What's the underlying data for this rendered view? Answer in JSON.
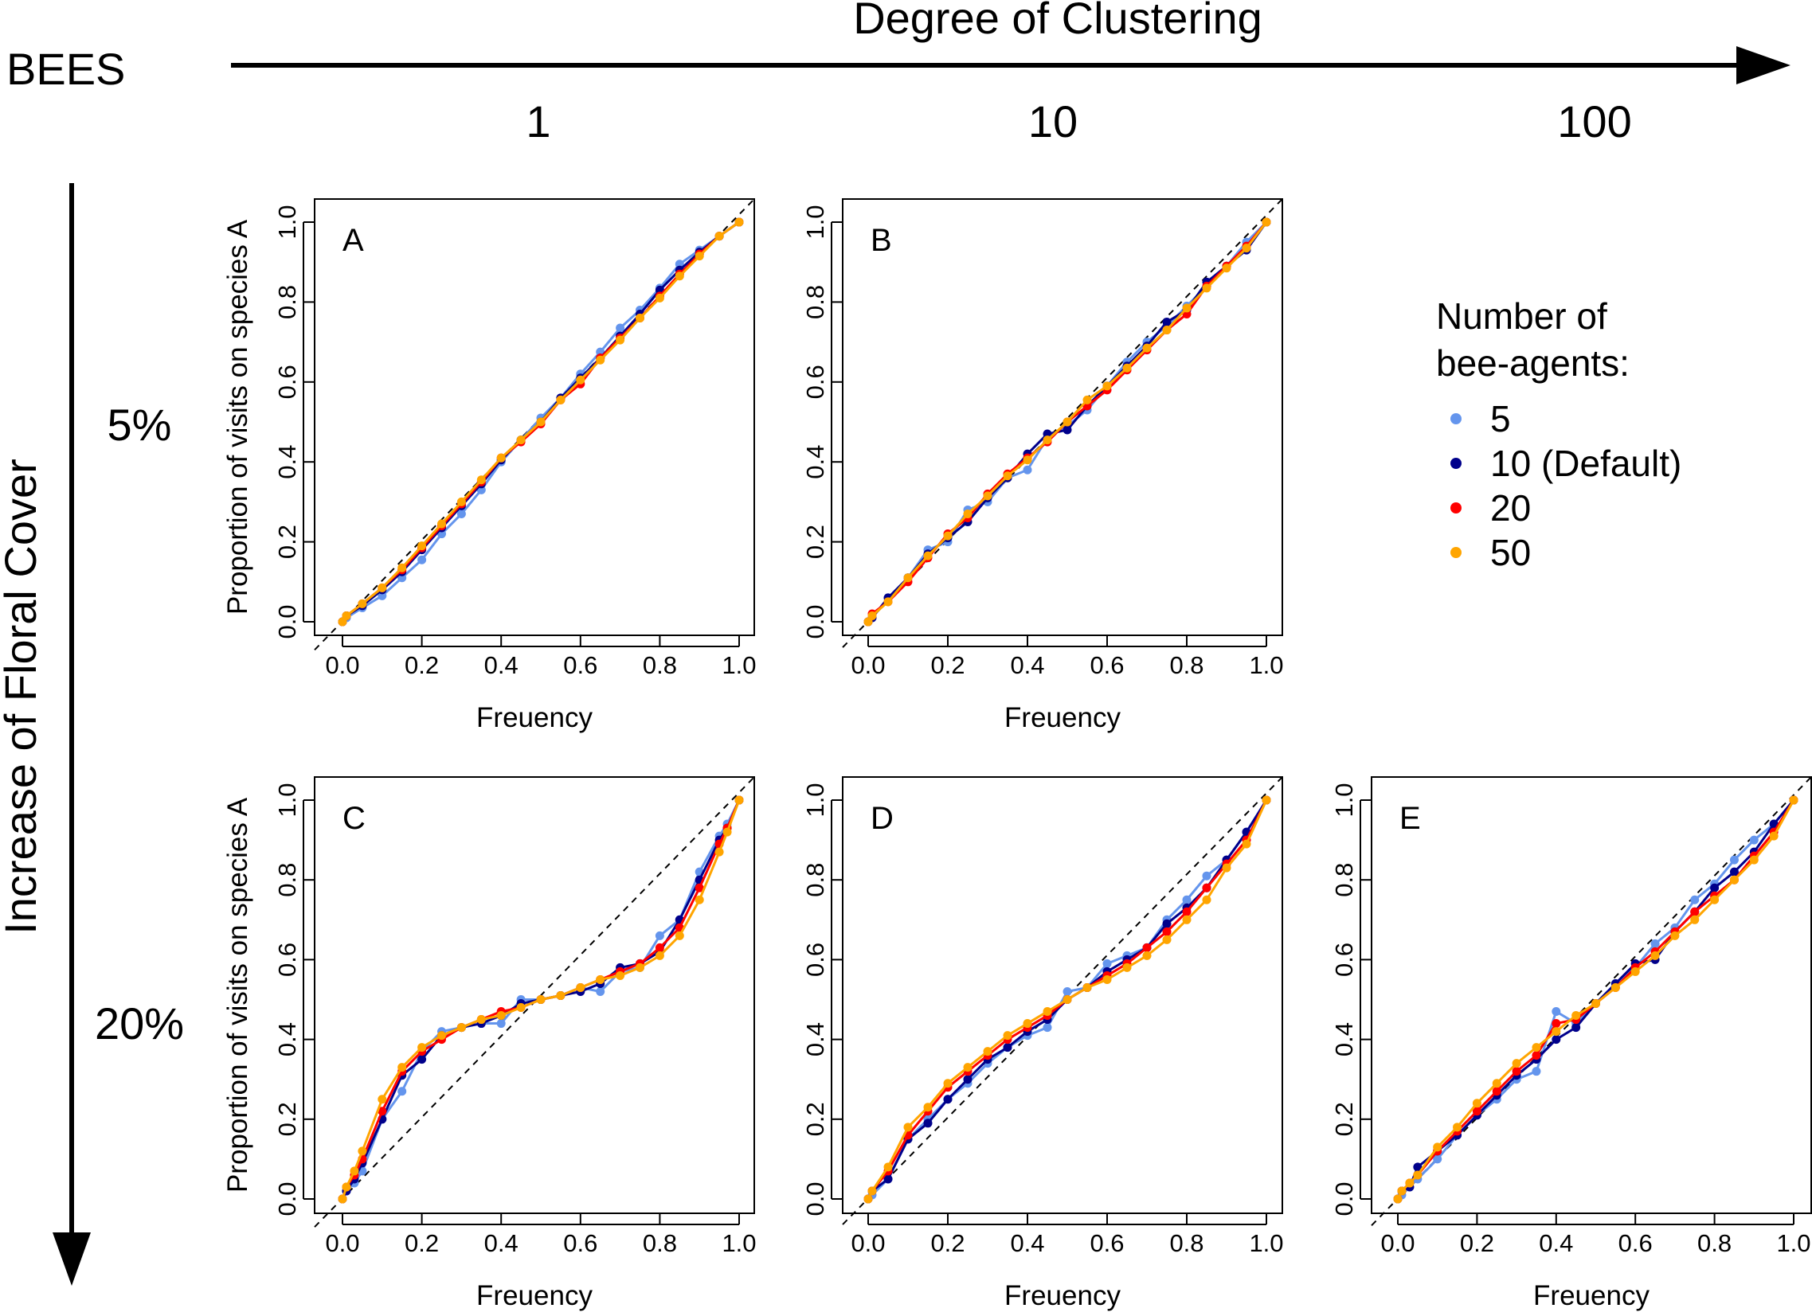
{
  "header": {
    "organism": "BEES",
    "col_axis_label": "Degree of Clustering",
    "col_levels": [
      "1",
      "10",
      "100"
    ],
    "row_axis_label": "Increase of Floral Cover",
    "row_levels": [
      "5%",
      "20%"
    ]
  },
  "legend": {
    "title_line1": "Number of",
    "title_line2": "bee-agents:",
    "items": [
      {
        "label": "5",
        "color": "#6495ED"
      },
      {
        "label": "10 (Default)",
        "color": "#00008B"
      },
      {
        "label": "20",
        "color": "#FF0000"
      },
      {
        "label": "50",
        "color": "#FFA500"
      }
    ]
  },
  "chart_data": [
    {
      "type": "line",
      "panel": "A",
      "xlabel": "Freuency",
      "ylabel": "Proportion of visits on species A",
      "xlim": [
        0,
        1
      ],
      "ylim": [
        0,
        1
      ],
      "xticks": [
        "0.0",
        "0.2",
        "0.4",
        "0.6",
        "0.8",
        "1.0"
      ],
      "yticks": [
        "0.0",
        "0.2",
        "0.4",
        "0.6",
        "0.8",
        "1.0"
      ],
      "reference_line": "y = x (dashed)",
      "x": [
        0,
        0.01,
        0.05,
        0.1,
        0.15,
        0.2,
        0.25,
        0.3,
        0.35,
        0.4,
        0.45,
        0.5,
        0.55,
        0.6,
        0.65,
        0.7,
        0.75,
        0.8,
        0.85,
        0.9,
        0.95,
        1
      ],
      "series": [
        {
          "name": "5",
          "values": [
            0,
            0.01,
            0.035,
            0.065,
            0.11,
            0.155,
            0.22,
            0.27,
            0.33,
            0.4,
            0.455,
            0.51,
            0.56,
            0.62,
            0.675,
            0.735,
            0.78,
            0.835,
            0.895,
            0.93,
            0.965,
            1
          ]
        },
        {
          "name": "10 (Default)",
          "values": [
            0,
            0.015,
            0.04,
            0.08,
            0.125,
            0.18,
            0.235,
            0.29,
            0.345,
            0.405,
            0.455,
            0.5,
            0.56,
            0.61,
            0.66,
            0.715,
            0.77,
            0.83,
            0.88,
            0.925,
            0.965,
            1
          ]
        },
        {
          "name": "20",
          "values": [
            0,
            0.015,
            0.045,
            0.085,
            0.13,
            0.185,
            0.24,
            0.295,
            0.35,
            0.41,
            0.45,
            0.495,
            0.555,
            0.595,
            0.66,
            0.71,
            0.76,
            0.815,
            0.87,
            0.92,
            0.965,
            1
          ]
        },
        {
          "name": "50",
          "values": [
            0,
            0.015,
            0.045,
            0.085,
            0.135,
            0.19,
            0.245,
            0.3,
            0.355,
            0.41,
            0.455,
            0.5,
            0.555,
            0.605,
            0.655,
            0.705,
            0.76,
            0.81,
            0.865,
            0.915,
            0.965,
            1
          ]
        }
      ]
    },
    {
      "type": "line",
      "panel": "B",
      "xlabel": "Freuency",
      "ylabel": "",
      "xlim": [
        0,
        1
      ],
      "ylim": [
        0,
        1
      ],
      "xticks": [
        "0.0",
        "0.2",
        "0.4",
        "0.6",
        "0.8",
        "1.0"
      ],
      "yticks": [
        "0.0",
        "0.2",
        "0.4",
        "0.6",
        "0.8",
        "1.0"
      ],
      "reference_line": "y = x (dashed)",
      "x": [
        0,
        0.01,
        0.05,
        0.1,
        0.15,
        0.2,
        0.25,
        0.3,
        0.35,
        0.4,
        0.45,
        0.5,
        0.55,
        0.6,
        0.65,
        0.7,
        0.75,
        0.8,
        0.85,
        0.9,
        0.95,
        1
      ],
      "series": [
        {
          "name": "5",
          "values": [
            0,
            0.01,
            0.06,
            0.11,
            0.18,
            0.2,
            0.28,
            0.3,
            0.36,
            0.38,
            0.46,
            0.49,
            0.53,
            0.59,
            0.65,
            0.7,
            0.74,
            0.79,
            0.84,
            0.89,
            0.95,
            1
          ]
        },
        {
          "name": "10 (Default)",
          "values": [
            0,
            0.01,
            0.06,
            0.11,
            0.17,
            0.21,
            0.25,
            0.31,
            0.36,
            0.42,
            0.47,
            0.48,
            0.54,
            0.59,
            0.64,
            0.69,
            0.75,
            0.78,
            0.85,
            0.89,
            0.93,
            1
          ]
        },
        {
          "name": "20",
          "values": [
            0,
            0.02,
            0.05,
            0.1,
            0.16,
            0.22,
            0.26,
            0.32,
            0.37,
            0.41,
            0.45,
            0.5,
            0.54,
            0.58,
            0.63,
            0.68,
            0.73,
            0.77,
            0.84,
            0.89,
            0.94,
            1
          ]
        },
        {
          "name": "50",
          "values": [
            0,
            0.015,
            0.05,
            0.11,
            0.165,
            0.215,
            0.27,
            0.315,
            0.365,
            0.405,
            0.455,
            0.5,
            0.555,
            0.59,
            0.635,
            0.685,
            0.73,
            0.785,
            0.835,
            0.885,
            0.935,
            1
          ]
        }
      ]
    },
    {
      "type": "line",
      "panel": "C",
      "xlabel": "Freuency",
      "ylabel": "Proportion of visits on species A",
      "xlim": [
        0,
        1
      ],
      "ylim": [
        0,
        1
      ],
      "xticks": [
        "0.0",
        "0.2",
        "0.4",
        "0.6",
        "0.8",
        "1.0"
      ],
      "yticks": [
        "0.0",
        "0.2",
        "0.4",
        "0.6",
        "0.8",
        "1.0"
      ],
      "reference_line": "y = x (dashed)",
      "x": [
        0,
        0.01,
        0.03,
        0.05,
        0.1,
        0.15,
        0.2,
        0.25,
        0.3,
        0.35,
        0.4,
        0.45,
        0.5,
        0.55,
        0.6,
        0.65,
        0.7,
        0.75,
        0.8,
        0.85,
        0.9,
        0.95,
        0.97,
        1
      ],
      "series": [
        {
          "name": "5",
          "values": [
            0,
            0.02,
            0.04,
            0.07,
            0.2,
            0.27,
            0.37,
            0.42,
            0.43,
            0.44,
            0.44,
            0.5,
            0.5,
            0.51,
            0.53,
            0.52,
            0.57,
            0.58,
            0.66,
            0.7,
            0.82,
            0.91,
            0.94,
            1
          ]
        },
        {
          "name": "10 (Default)",
          "values": [
            0,
            0.02,
            0.05,
            0.09,
            0.2,
            0.31,
            0.35,
            0.41,
            0.43,
            0.44,
            0.46,
            0.49,
            0.5,
            0.51,
            0.52,
            0.54,
            0.58,
            0.59,
            0.62,
            0.7,
            0.8,
            0.9,
            0.93,
            1
          ]
        },
        {
          "name": "20",
          "values": [
            0,
            0.03,
            0.06,
            0.1,
            0.22,
            0.32,
            0.37,
            0.4,
            0.43,
            0.45,
            0.47,
            0.48,
            0.5,
            0.51,
            0.53,
            0.55,
            0.57,
            0.59,
            0.63,
            0.68,
            0.78,
            0.89,
            0.93,
            1
          ]
        },
        {
          "name": "50",
          "values": [
            0,
            0.03,
            0.07,
            0.12,
            0.25,
            0.33,
            0.38,
            0.41,
            0.43,
            0.45,
            0.46,
            0.48,
            0.5,
            0.51,
            0.53,
            0.55,
            0.56,
            0.58,
            0.61,
            0.66,
            0.75,
            0.87,
            0.92,
            1
          ]
        }
      ]
    },
    {
      "type": "line",
      "panel": "D",
      "xlabel": "Freuency",
      "ylabel": "",
      "xlim": [
        0,
        1
      ],
      "ylim": [
        0,
        1
      ],
      "xticks": [
        "0.0",
        "0.2",
        "0.4",
        "0.6",
        "0.8",
        "1.0"
      ],
      "yticks": [
        "0.0",
        "0.2",
        "0.4",
        "0.6",
        "0.8",
        "1.0"
      ],
      "reference_line": "y = x (dashed)",
      "x": [
        0,
        0.01,
        0.05,
        0.1,
        0.15,
        0.2,
        0.25,
        0.3,
        0.35,
        0.4,
        0.45,
        0.5,
        0.55,
        0.6,
        0.65,
        0.7,
        0.75,
        0.8,
        0.85,
        0.9,
        0.95,
        1
      ],
      "series": [
        {
          "name": "5",
          "values": [
            0,
            0.01,
            0.05,
            0.15,
            0.2,
            0.25,
            0.29,
            0.34,
            0.38,
            0.41,
            0.43,
            0.52,
            0.53,
            0.59,
            0.61,
            0.63,
            0.7,
            0.75,
            0.81,
            0.85,
            0.92,
            1
          ]
        },
        {
          "name": "10 (Default)",
          "values": [
            0,
            0.02,
            0.05,
            0.15,
            0.19,
            0.25,
            0.3,
            0.35,
            0.38,
            0.42,
            0.45,
            0.5,
            0.53,
            0.57,
            0.6,
            0.63,
            0.69,
            0.73,
            0.78,
            0.85,
            0.92,
            1
          ]
        },
        {
          "name": "20",
          "values": [
            0,
            0.02,
            0.07,
            0.16,
            0.22,
            0.28,
            0.32,
            0.36,
            0.4,
            0.43,
            0.46,
            0.5,
            0.53,
            0.56,
            0.59,
            0.63,
            0.67,
            0.72,
            0.78,
            0.84,
            0.9,
            1
          ]
        },
        {
          "name": "50",
          "values": [
            0,
            0.02,
            0.08,
            0.18,
            0.23,
            0.29,
            0.33,
            0.37,
            0.41,
            0.44,
            0.47,
            0.5,
            0.53,
            0.55,
            0.58,
            0.61,
            0.65,
            0.7,
            0.75,
            0.83,
            0.89,
            1
          ]
        }
      ]
    },
    {
      "type": "line",
      "panel": "E",
      "xlabel": "Freuency",
      "ylabel": "",
      "xlim": [
        0,
        1
      ],
      "ylim": [
        0,
        1
      ],
      "xticks": [
        "0.0",
        "0.2",
        "0.4",
        "0.6",
        "0.8",
        "1.0"
      ],
      "yticks": [
        "0.0",
        "0.2",
        "0.4",
        "0.6",
        "0.8",
        "1.0"
      ],
      "reference_line": "y = x (dashed)",
      "x": [
        0,
        0.01,
        0.03,
        0.05,
        0.1,
        0.15,
        0.2,
        0.25,
        0.3,
        0.35,
        0.4,
        0.45,
        0.5,
        0.55,
        0.6,
        0.65,
        0.7,
        0.75,
        0.8,
        0.85,
        0.9,
        0.95,
        1
      ],
      "series": [
        {
          "name": "5",
          "values": [
            0,
            0.01,
            0.03,
            0.05,
            0.1,
            0.16,
            0.21,
            0.25,
            0.3,
            0.32,
            0.47,
            0.44,
            0.49,
            0.54,
            0.58,
            0.64,
            0.68,
            0.75,
            0.79,
            0.85,
            0.9,
            0.94,
            1
          ]
        },
        {
          "name": "10 (Default)",
          "values": [
            0,
            0.02,
            0.03,
            0.08,
            0.12,
            0.16,
            0.21,
            0.26,
            0.31,
            0.35,
            0.4,
            0.43,
            0.49,
            0.54,
            0.59,
            0.6,
            0.67,
            0.72,
            0.78,
            0.82,
            0.87,
            0.94,
            1
          ]
        },
        {
          "name": "20",
          "values": [
            0,
            0.02,
            0.04,
            0.06,
            0.12,
            0.17,
            0.22,
            0.27,
            0.32,
            0.36,
            0.44,
            0.45,
            0.49,
            0.53,
            0.58,
            0.62,
            0.67,
            0.72,
            0.76,
            0.8,
            0.86,
            0.92,
            1
          ]
        },
        {
          "name": "50",
          "values": [
            0,
            0.02,
            0.04,
            0.06,
            0.13,
            0.18,
            0.24,
            0.29,
            0.34,
            0.38,
            0.42,
            0.46,
            0.49,
            0.53,
            0.57,
            0.61,
            0.66,
            0.7,
            0.75,
            0.8,
            0.85,
            0.91,
            1
          ]
        }
      ]
    }
  ]
}
